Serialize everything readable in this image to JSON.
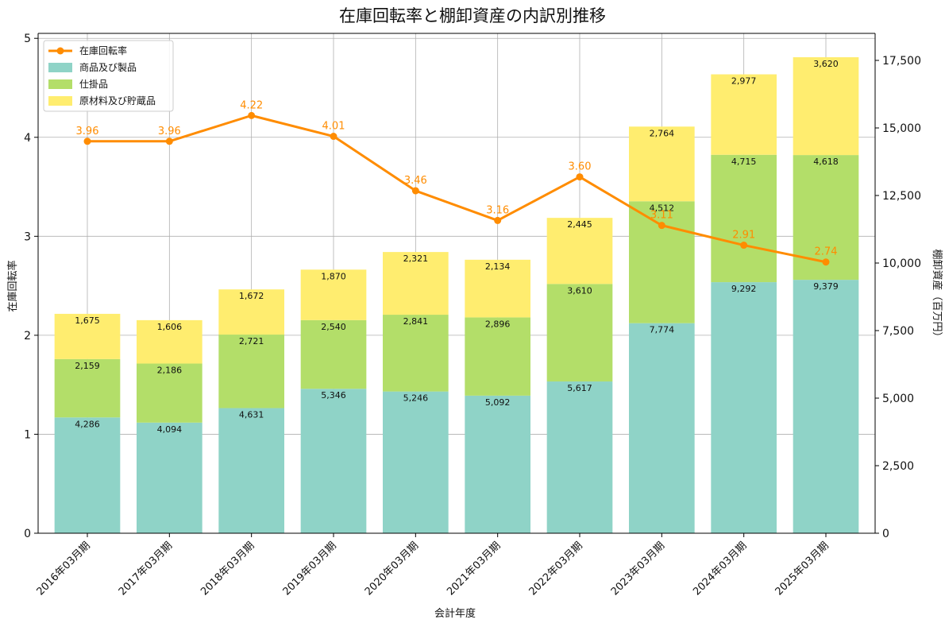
{
  "chart_data": {
    "type": "bar",
    "title": "在庫回転率と棚卸資産の内訳別推移",
    "xlabel": "会計年度",
    "ylabel_left": "在庫回転率",
    "ylabel_right": "棚卸資産（百万円）",
    "ylim_left": [
      0,
      5.05
    ],
    "ylim_right": [
      0,
      18500
    ],
    "yticks_left": [
      "0",
      "1",
      "2",
      "3",
      "4",
      "5"
    ],
    "yticks_right": [
      "0",
      "2,500",
      "5,000",
      "7,500",
      "10,000",
      "12,500",
      "15,000",
      "17,500"
    ],
    "grid": true,
    "legend_position": "top-left",
    "categories": [
      "2016年03月期",
      "2017年03月期",
      "2018年03月期",
      "2019年03月期",
      "2020年03月期",
      "2021年03月期",
      "2022年03月期",
      "2023年03月期",
      "2024年03月期",
      "2025年03月期"
    ],
    "bar_series": [
      {
        "name": "商品及び製品",
        "color": "#8fd3c7",
        "values": [
          4286,
          4094,
          4631,
          5346,
          5246,
          5092,
          5617,
          7774,
          9292,
          9379
        ],
        "labels": [
          "4,286",
          "4,094",
          "4,631",
          "5,346",
          "5,246",
          "5,092",
          "5,617",
          "7,774",
          "9,292",
          "9,379"
        ]
      },
      {
        "name": "仕掛品",
        "color": "#b3de69",
        "values": [
          2159,
          2186,
          2721,
          2540,
          2841,
          2896,
          3610,
          4512,
          4715,
          4618
        ],
        "labels": [
          "2,159",
          "2,186",
          "2,721",
          "2,540",
          "2,841",
          "2,896",
          "3,610",
          "4,512",
          "4,715",
          "4,618"
        ]
      },
      {
        "name": "原材料及び貯蔵品",
        "color": "#ffed6f",
        "values": [
          1675,
          1606,
          1672,
          1870,
          2321,
          2134,
          2445,
          2764,
          2977,
          3620
        ],
        "labels": [
          "1,675",
          "1,606",
          "1,672",
          "1,870",
          "2,321",
          "2,134",
          "2,445",
          "2,764",
          "2,977",
          "3,620"
        ]
      }
    ],
    "line_series": {
      "name": "在庫回転率",
      "color": "#ff8c00",
      "values": [
        3.96,
        3.96,
        4.22,
        4.01,
        3.46,
        3.16,
        3.6,
        3.11,
        2.91,
        2.74
      ],
      "labels": [
        "3.96",
        "3.96",
        "4.22",
        "4.01",
        "3.46",
        "3.16",
        "3.60",
        "3.11",
        "2.91",
        "2.74"
      ]
    }
  }
}
